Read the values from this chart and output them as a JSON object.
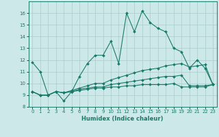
{
  "xlabel": "Humidex (Indice chaleur)",
  "bg_color": "#cce8e8",
  "grid_color": "#aacccc",
  "line_color": "#1a7a6a",
  "xlim": [
    -0.5,
    23.5
  ],
  "ylim": [
    8,
    17
  ],
  "yticks": [
    8,
    9,
    10,
    11,
    12,
    13,
    14,
    15,
    16
  ],
  "xticks": [
    0,
    1,
    2,
    3,
    4,
    5,
    6,
    7,
    8,
    9,
    10,
    11,
    12,
    13,
    14,
    15,
    16,
    17,
    18,
    19,
    20,
    21,
    22,
    23
  ],
  "series": [
    {
      "x": [
        0,
        1,
        2,
        3,
        4,
        5,
        6,
        7,
        8,
        9,
        10,
        11,
        12,
        13,
        14,
        15,
        16,
        17,
        18,
        19,
        20,
        21,
        22,
        23
      ],
      "y": [
        11.8,
        11.0,
        9.0,
        9.3,
        8.5,
        9.3,
        10.6,
        11.7,
        12.4,
        12.4,
        13.6,
        11.7,
        16.0,
        14.4,
        16.2,
        15.2,
        14.7,
        14.4,
        13.0,
        12.7,
        11.3,
        12.0,
        11.3,
        9.9
      ]
    },
    {
      "x": [
        0,
        1,
        2,
        3,
        4,
        5,
        6,
        7,
        8,
        9,
        10,
        11,
        12,
        13,
        14,
        15,
        16,
        17,
        18,
        19,
        20,
        21,
        22,
        23
      ],
      "y": [
        9.3,
        9.0,
        9.0,
        9.3,
        9.2,
        9.4,
        9.6,
        9.8,
        10.0,
        10.0,
        10.3,
        10.5,
        10.7,
        10.9,
        11.1,
        11.2,
        11.3,
        11.5,
        11.6,
        11.7,
        11.4,
        11.5,
        11.6,
        9.9
      ]
    },
    {
      "x": [
        0,
        1,
        2,
        3,
        4,
        5,
        6,
        7,
        8,
        9,
        10,
        11,
        12,
        13,
        14,
        15,
        16,
        17,
        18,
        19,
        20,
        21,
        22,
        23
      ],
      "y": [
        9.3,
        9.0,
        9.0,
        9.3,
        9.2,
        9.3,
        9.5,
        9.6,
        9.7,
        9.7,
        9.9,
        10.0,
        10.1,
        10.2,
        10.3,
        10.4,
        10.5,
        10.6,
        10.6,
        10.7,
        9.8,
        9.8,
        9.8,
        9.9
      ]
    },
    {
      "x": [
        0,
        1,
        2,
        3,
        4,
        5,
        6,
        7,
        8,
        9,
        10,
        11,
        12,
        13,
        14,
        15,
        16,
        17,
        18,
        19,
        20,
        21,
        22,
        23
      ],
      "y": [
        9.3,
        9.0,
        9.0,
        9.3,
        9.2,
        9.3,
        9.4,
        9.5,
        9.6,
        9.6,
        9.7,
        9.7,
        9.8,
        9.8,
        9.9,
        9.9,
        9.9,
        9.9,
        10.0,
        9.7,
        9.7,
        9.7,
        9.7,
        9.9
      ]
    }
  ]
}
